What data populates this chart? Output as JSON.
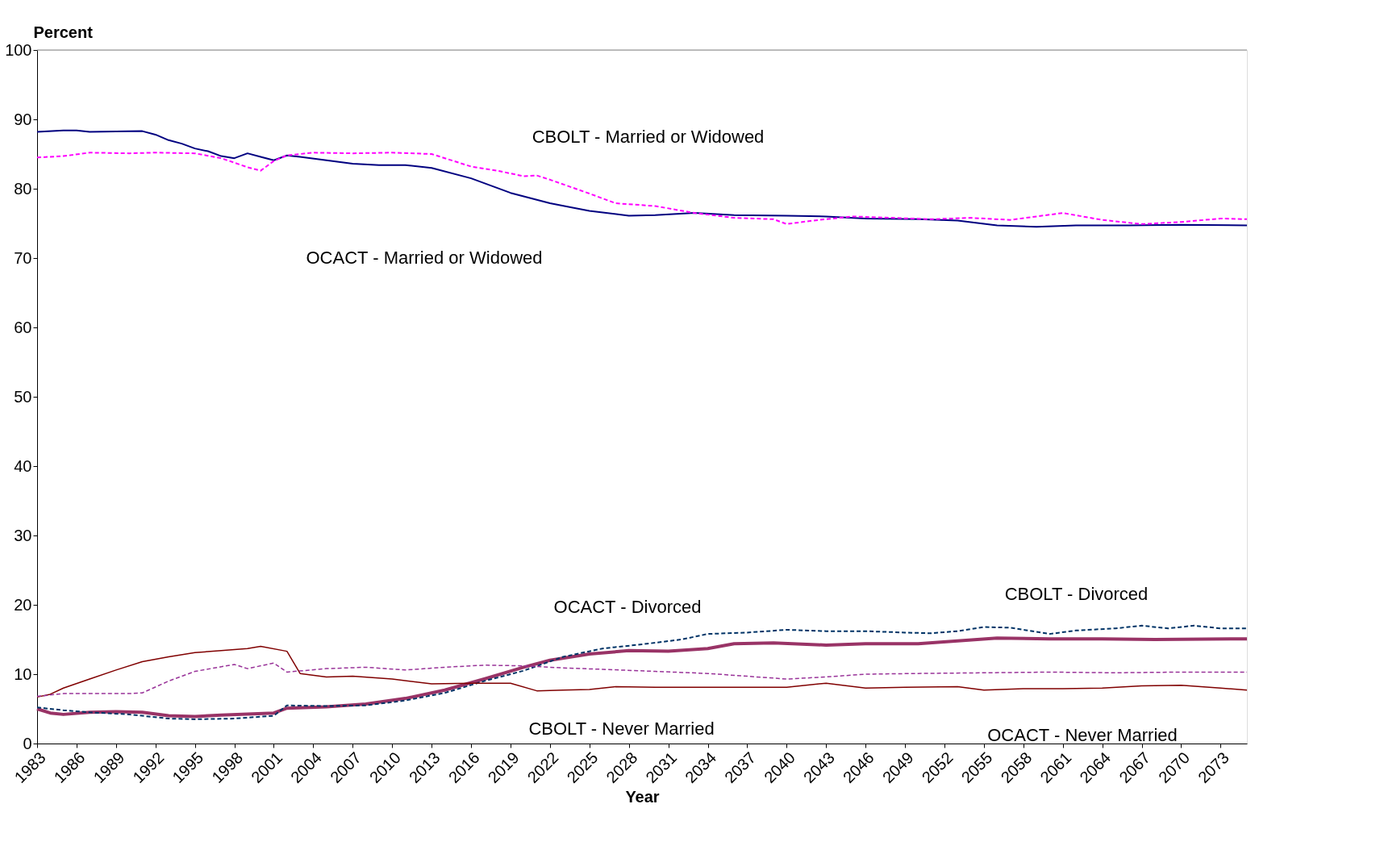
{
  "chart_data": {
    "type": "line",
    "xlabel": "Year",
    "ylabel": "Percent",
    "xlim": [
      1983,
      2075
    ],
    "xticks": [
      1983,
      1986,
      1989,
      1992,
      1995,
      1998,
      2001,
      2004,
      2007,
      2010,
      2013,
      2016,
      2019,
      2022,
      2025,
      2028,
      2031,
      2034,
      2037,
      2040,
      2043,
      2046,
      2049,
      2052,
      2055,
      2058,
      2061,
      2064,
      2067,
      2070,
      2073
    ],
    "ylim": [
      0,
      100
    ],
    "yticks": [
      0,
      10,
      20,
      30,
      40,
      50,
      60,
      70,
      80,
      90,
      100
    ],
    "grid": false,
    "marker": "none",
    "series": [
      {
        "color": "#000080",
        "line_style": "solid",
        "x": [
          1983,
          1985,
          1986,
          1987,
          1991,
          1992,
          1993,
          1994,
          1995,
          1996,
          1997,
          1998,
          1999,
          2000,
          2001,
          2002,
          2003,
          2005,
          2007,
          2009,
          2011,
          2013,
          2016,
          2019,
          2022,
          2025,
          2028,
          2030,
          2033,
          2036,
          2040,
          2043,
          2046,
          2050,
          2053,
          2056,
          2059,
          2062,
          2066,
          2070,
          2075
        ],
        "values": [
          88.2,
          88.4,
          88.4,
          88.2,
          88.3,
          87.8,
          87.0,
          86.5,
          85.8,
          85.4,
          84.7,
          84.4,
          85.1,
          84.6,
          84.1,
          84.8,
          84.6,
          84.1,
          83.6,
          83.4,
          83.4,
          83.0,
          81.5,
          79.4,
          77.9,
          76.8,
          76.1,
          76.2,
          76.5,
          76.2,
          76.1,
          76.0,
          75.7,
          75.6,
          75.4,
          74.7,
          74.5,
          74.7,
          74.7,
          74.8,
          74.7
        ]
      },
      {
        "color": "#ff00ff",
        "line_style": "dashed",
        "x": [
          1983,
          1985,
          1987,
          1990,
          1992,
          1995,
          1997,
          1999,
          2000,
          2001,
          2002,
          2004,
          2007,
          2010,
          2013,
          2016,
          2018,
          2020,
          2021,
          2022,
          2025,
          2027,
          2030,
          2033,
          2036,
          2039,
          2040,
          2042,
          2045,
          2048,
          2051,
          2054,
          2057,
          2059,
          2061,
          2064,
          2067,
          2070,
          2073,
          2075
        ],
        "values": [
          84.5,
          84.7,
          85.2,
          85.1,
          85.2,
          85.1,
          84.4,
          83.1,
          82.6,
          84.0,
          84.8,
          85.2,
          85.1,
          85.2,
          85.0,
          83.2,
          82.6,
          81.8,
          81.9,
          81.3,
          79.3,
          77.9,
          77.5,
          76.5,
          75.8,
          75.6,
          74.9,
          75.4,
          76.0,
          75.8,
          75.6,
          75.8,
          75.5,
          76.0,
          76.5,
          75.5,
          74.9,
          75.2,
          75.7,
          75.6
        ]
      },
      {
        "color": "#993366",
        "line_style": "solid",
        "x": [
          1983,
          1984,
          1985,
          1987,
          1989,
          1991,
          1993,
          1995,
          1997,
          2001,
          2002,
          2005,
          2008,
          2011,
          2014,
          2017,
          2020,
          2022,
          2025,
          2028,
          2031,
          2034,
          2036,
          2039,
          2043,
          2046,
          2050,
          2053,
          2056,
          2060,
          2064,
          2068,
          2075
        ],
        "values": [
          5.0,
          4.4,
          4.2,
          4.5,
          4.6,
          4.5,
          4.0,
          3.9,
          4.1,
          4.4,
          5.1,
          5.3,
          5.7,
          6.5,
          7.7,
          9.3,
          11.0,
          12.0,
          12.9,
          13.4,
          13.3,
          13.7,
          14.4,
          14.5,
          14.2,
          14.4,
          14.4,
          14.8,
          15.2,
          15.1,
          15.1,
          15.0,
          15.1
        ]
      },
      {
        "color": "#003366",
        "line_style": "dashed",
        "x": [
          1983,
          1985,
          1987,
          1990,
          1993,
          1995,
          1998,
          2001,
          2002,
          2005,
          2008,
          2011,
          2014,
          2017,
          2020,
          2023,
          2026,
          2029,
          2032,
          2034,
          2037,
          2040,
          2043,
          2046,
          2049,
          2051,
          2053,
          2055,
          2057,
          2060,
          2062,
          2065,
          2067,
          2069,
          2071,
          2073,
          2075
        ],
        "values": [
          5.2,
          4.8,
          4.5,
          4.2,
          3.6,
          3.5,
          3.6,
          4.0,
          5.5,
          5.4,
          5.5,
          6.2,
          7.3,
          9.0,
          10.5,
          12.5,
          13.7,
          14.3,
          15.0,
          15.8,
          16.0,
          16.4,
          16.2,
          16.2,
          16.0,
          15.9,
          16.2,
          16.8,
          16.7,
          15.8,
          16.3,
          16.6,
          17.0,
          16.6,
          17.0,
          16.6,
          16.6
        ]
      },
      {
        "color": "#800000",
        "line_style": "solid",
        "x": [
          1983,
          1984,
          1985,
          1987,
          1989,
          1991,
          1993,
          1995,
          1997,
          1999,
          2000,
          2002,
          2003,
          2005,
          2007,
          2010,
          2013,
          2016,
          2019,
          2021,
          2023,
          2025,
          2027,
          2030,
          2034,
          2040,
          2043,
          2046,
          2049,
          2053,
          2055,
          2058,
          2061,
          2064,
          2067,
          2070,
          2073,
          2075
        ],
        "values": [
          6.7,
          7.1,
          8.0,
          9.3,
          10.6,
          11.8,
          12.5,
          13.1,
          13.4,
          13.7,
          14.0,
          13.3,
          10.1,
          9.6,
          9.7,
          9.3,
          8.6,
          8.7,
          8.7,
          7.6,
          7.7,
          7.8,
          8.2,
          8.1,
          8.1,
          8.1,
          8.7,
          8.0,
          8.1,
          8.2,
          7.7,
          7.9,
          7.9,
          8.0,
          8.3,
          8.4,
          8.0,
          7.7
        ]
      },
      {
        "color": "#993399",
        "line_style": "dashed",
        "x": [
          1983,
          1985,
          1990,
          1991,
          1993,
          1995,
          1998,
          1999,
          2001,
          2002,
          2005,
          2008,
          2011,
          2014,
          2017,
          2020,
          2023,
          2026,
          2030,
          2034,
          2040,
          2043,
          2046,
          2050,
          2055,
          2060,
          2065,
          2070,
          2075
        ],
        "values": [
          6.8,
          7.2,
          7.2,
          7.3,
          9.0,
          10.4,
          11.4,
          10.8,
          11.6,
          10.3,
          10.8,
          11.0,
          10.6,
          11.0,
          11.3,
          11.2,
          10.9,
          10.7,
          10.4,
          10.1,
          9.3,
          9.6,
          10.0,
          10.1,
          10.2,
          10.3,
          10.2,
          10.3,
          10.3
        ]
      }
    ],
    "annotations": [
      "CBOLT - Married or Widowed",
      "OCACT - Married or Widowed",
      "OCACT - Divorced",
      "CBOLT - Divorced",
      "CBOLT - Never Married",
      "OCACT - Never Married"
    ]
  }
}
